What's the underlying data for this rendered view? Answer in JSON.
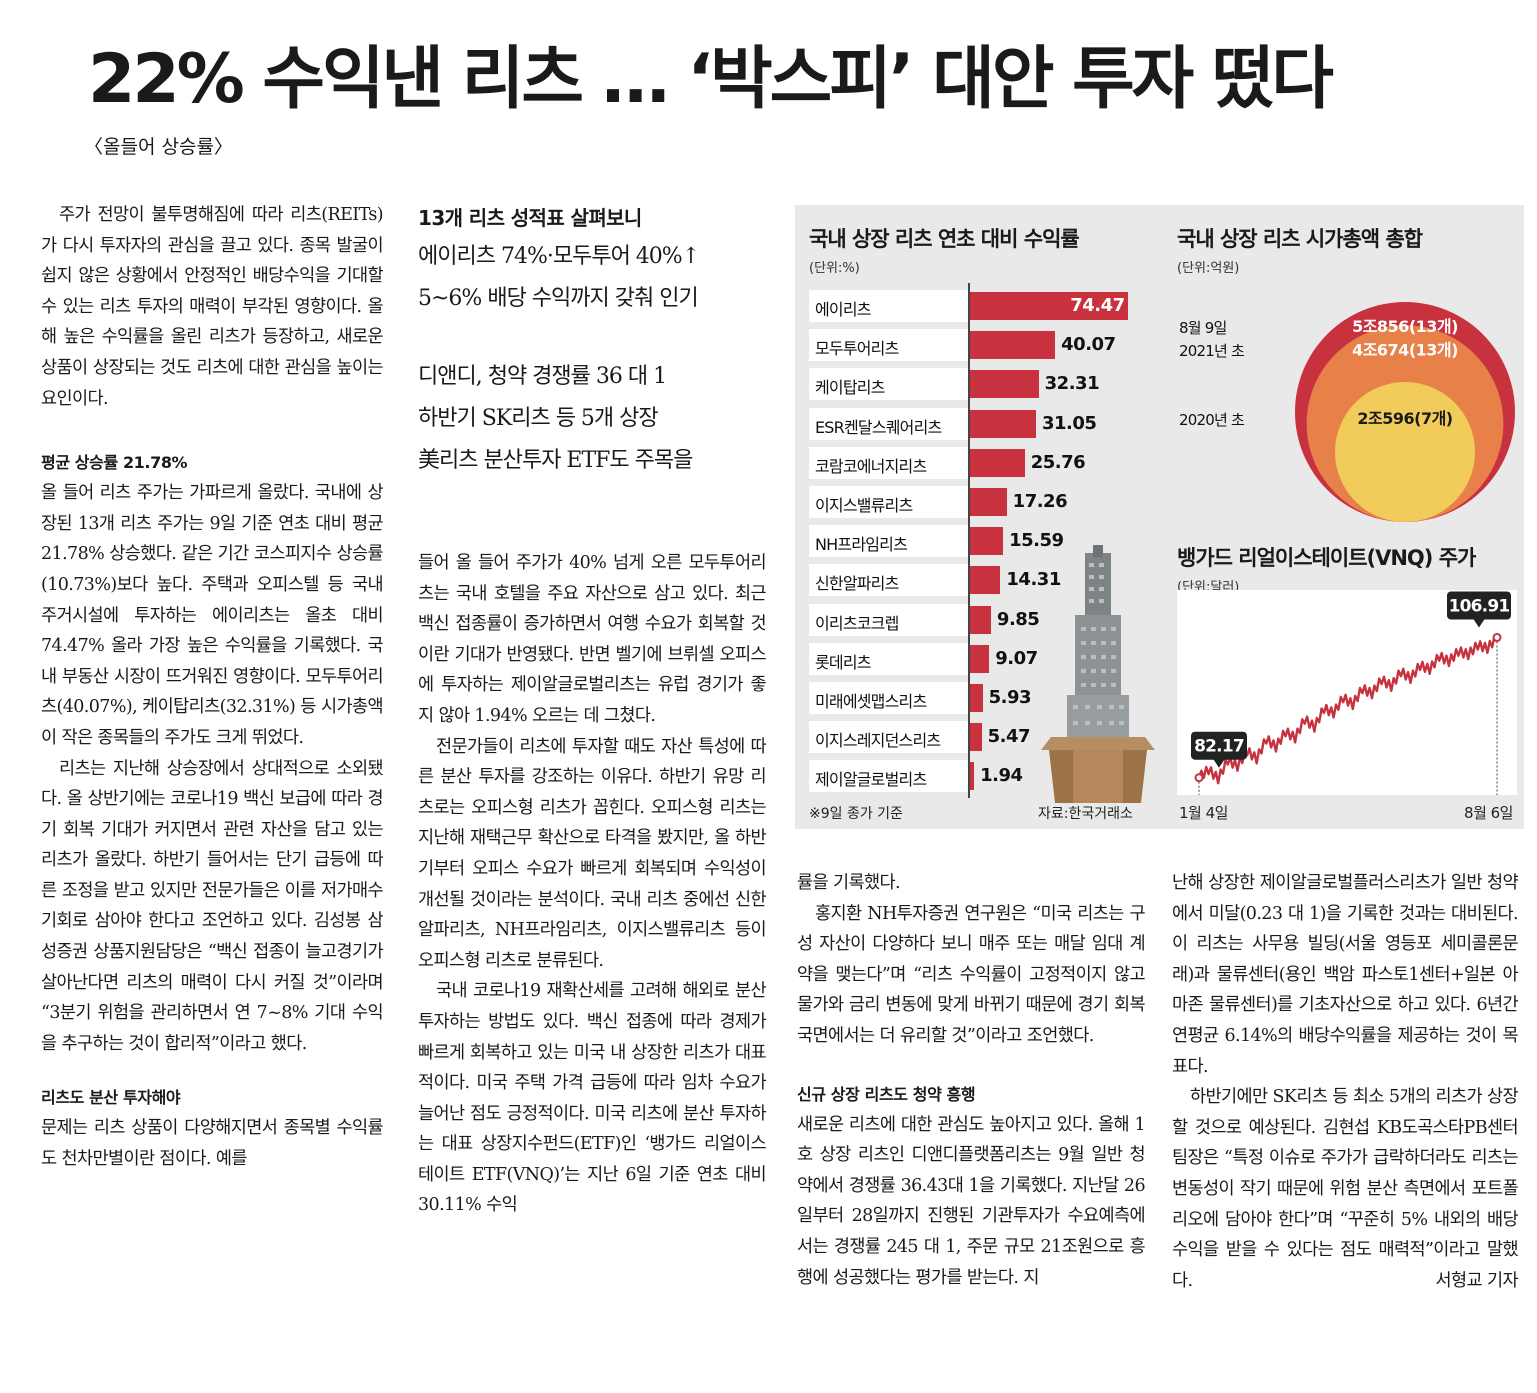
{
  "headline": "22% 수익낸 리츠 … ‘박스피’ 대안 투자 떴다",
  "subhead": "〈올들어 상승률〉",
  "deck": {
    "title": "13개 리츠 성적표 살펴보니",
    "lines": [
      "에이리츠 74%·모두투어 40%↑",
      "5~6% 배당 수익까지 갖춰 인기",
      "디앤디, 청약 경쟁률 36 대 1",
      "하반기 SK리츠 등 5개 상장",
      "美리츠 분산투자 ETF도 주목을"
    ]
  },
  "col1": {
    "p1": "주가 전망이 불투명해짐에 따라 리츠(REITs)가 다시 투자자의 관심을 끌고 있다. 종목 발굴이 쉽지 않은 상황에서 안정적인 배당수익을 기대할 수 있는 리츠 투자의 매력이 부각된 영향이다. 올해 높은 수익률을 올린 리츠가 등장하고, 새로운 상품이 상장되는 것도 리츠에 대한 관심을 높이는 요인이다.",
    "sub1": "평균 상승률 21.78%",
    "p2": "올 들어 리츠 주가는 가파르게 올랐다. 국내에 상장된 13개 리츠 주가는 9일 기준 연초 대비 평균 21.78% 상승했다. 같은 기간 코스피지수 상승률(10.73%)보다 높다. 주택과 오피스텔 등 국내 주거시설에 투자하는 에이리츠는 올초 대비 74.47% 올라 가장 높은 수익률을 기록했다. 국내 부동산 시장이 뜨거워진 영향이다. 모두투어리츠(40.07%), 케이탑리츠(32.31%) 등 시가총액이 작은 종목들의 주가도 크게 뛰었다.",
    "p3": "리츠는 지난해 상승장에서 상대적으로 소외됐다. 올 상반기에는 코로나19 백신 보급에 따라 경기 회복 기대가 커지면서 관련 자산을 담고 있는 리츠가 올랐다. 하반기 들어서는 단기 급등에 따른 조정을 받고 있지만 전문가들은 이를 저가매수 기회로 삼아야 한다고 조언하고 있다. 김성봉 삼성증권 상품지원담당은 “백신 접종이 늘고경기가 살아난다면 리츠의 매력이 다시 커질 것”이라며 “3분기 위험을 관리하면서 연 7~8% 기대 수익을 추구하는 것이 합리적”이라고 했다.",
    "sub2": "리츠도 분산 투자해야",
    "p4": "문제는 리츠 상품이 다양해지면서 종목별 수익률도 천차만별이란 점이다. 예를"
  },
  "col2": {
    "p1": "들어 올 들어 주가가 40% 넘게 오른 모두투어리츠는 국내 호텔을 주요 자산으로 삼고 있다. 최근 백신 접종률이 증가하면서 여행 수요가 회복할 것이란 기대가 반영됐다. 반면 벨기에 브뤼셀 오피스에 투자하는 제이알글로벌리츠는 유럽 경기가 좋지 않아 1.94% 오르는 데 그쳤다.",
    "p2": "전문가들이 리츠에 투자할 때도 자산 특성에 따른 분산 투자를 강조하는 이유다. 하반기 유망 리츠로는 오피스형 리츠가 꼽힌다. 오피스형 리츠는 지난해 재택근무 확산으로 타격을 봤지만, 올 하반기부터 오피스 수요가 빠르게 회복되며 수익성이 개선될 것이라는 분석이다. 국내 리츠 중에선 신한알파리츠, NH프라임리츠, 이지스밸류리츠 등이 오피스형 리츠로 분류된다.",
    "p3": "국내 코로나19 재확산세를 고려해 해외로 분산 투자하는 방법도 있다. 백신 접종에 따라 경제가 빠르게 회복하고 있는 미국 내 상장한 리츠가 대표적이다. 미국 주택 가격 급등에 따라 임차 수요가 늘어난 점도 긍정적이다. 미국 리츠에 분산 투자하는 대표 상장지수펀드(ETF)인 ‘뱅가드 리얼이스테이트 ETF(VNQ)’는 지난 6일 기준 연초 대비 30.11% 수익"
  },
  "col3": {
    "p1": "률을 기록했다.",
    "p2": "홍지환 NH투자증권 연구원은 “미국 리츠는 구성 자산이 다양하다 보니 매주 또는 매달 임대 계약을 맺는다”며 “리츠 수익률이 고정적이지 않고 물가와 금리 변동에 맞게 바뀌기 때문에 경기 회복 국면에서는 더 유리할 것”이라고 조언했다.",
    "sub": "신규 상장 리츠도 청약 흥행",
    "p3": "새로운 리츠에 대한 관심도 높아지고 있다. 올해 1호 상장 리츠인 디앤디플랫폼리츠는 9월 일반 청약에서 경쟁률 36.43대 1을 기록했다. 지난달 26일부터 28일까지 진행된 기관투자가 수요예측에서는 경쟁률 245 대 1, 주문 규모 21조원으로 흥행에 성공했다는 평가를 받는다. 지"
  },
  "col4": {
    "p1": "난해 상장한 제이알글로벌플러스리츠가 일반 청약에서 미달(0.23 대 1)을 기록한 것과는 대비된다. 이 리츠는 사무용 빌딩(서울 영등포 세미콜론문래)과 물류센터(용인 백암 파스토1센터+일본 아마존 물류센터)를 기초자산으로 하고 있다. 6년간 연평균 6.14%의 배당수익률을 제공하는 것이 목표다.",
    "p2": "하반기에만 SK리츠 등 최소 5개의 리츠가 상장할 것으로 예상된다. 김현섭 KB도곡스타PB센터 팀장은 “특정 이슈로 주가가 급락하더라도 리츠는 변동성이 작기 때문에 위험 분산 측면에서 포트폴리오에 담아야 한다”며 “꾸준히 5% 내외의 배당수익을 받을 수 있다는 점도 매력적”이라고 말했다.",
    "byline": "서형교 기자"
  },
  "chart_data": [
    {
      "type": "bar",
      "title": "국내 상장 리츠 연초 대비 수익률",
      "unit": "(단위:%)",
      "categories": [
        "에이리츠",
        "모두투어리츠",
        "케이탑리츠",
        "ESR켄달스퀘어리츠",
        "코람코에너지리츠",
        "이지스밸류리츠",
        "NH프라임리츠",
        "신한알파리츠",
        "이리츠코크렙",
        "롯데리츠",
        "미래에셋맵스리츠",
        "이지스레지던스리츠",
        "제이알글로벌리츠"
      ],
      "values": [
        74.47,
        40.07,
        32.31,
        31.05,
        25.76,
        17.26,
        15.59,
        14.31,
        9.85,
        9.07,
        5.93,
        5.47,
        1.94
      ],
      "value_labels": [
        "74.47",
        "40.07",
        "32.31",
        "31.05",
        "25.76",
        "17.26",
        "15.59",
        "14.31",
        "9.85",
        "9.07",
        "5.93",
        "5.47",
        "1.94"
      ],
      "note": "※9일 종가 기준",
      "source": "자료:한국거래소",
      "color": "#c8313e",
      "xlim": [
        0,
        80
      ]
    },
    {
      "type": "nested-circles",
      "title": "국내 상장 리츠 시가총액 총합",
      "unit": "(단위:억원)",
      "categories": [
        "8월 9일",
        "2021년 초",
        "2020년 초"
      ],
      "values": [
        50856,
        40674,
        20596
      ],
      "value_labels": [
        "5조856(13개)",
        "4조674(13개)",
        "2조596(7개)"
      ],
      "colors": [
        "#c8313e",
        "#e8804a",
        "#f2cc5a"
      ]
    },
    {
      "type": "line",
      "title": "뱅가드 리얼이스테이트(VNQ) 주가",
      "unit": "(단위:달러)",
      "x_labels": [
        "1월 4일",
        "8월 6일"
      ],
      "start_value": 82.17,
      "end_value": 106.91,
      "start_label": "82.17",
      "end_label": "106.91",
      "series": [
        82.17,
        83.5,
        81.9,
        85.2,
        84.1,
        86.8,
        85.4,
        88.9,
        87.5,
        90.2,
        89.1,
        92.4,
        91.0,
        94.3,
        93.5,
        96.2,
        95.0,
        97.8,
        96.9,
        99.4,
        98.2,
        100.8,
        99.6,
        101.9,
        101.2,
        103.5,
        102.6,
        104.4,
        103.8,
        105.5,
        104.9,
        106.91
      ],
      "ylim": [
        80,
        110
      ],
      "color": "#c8313e"
    }
  ]
}
